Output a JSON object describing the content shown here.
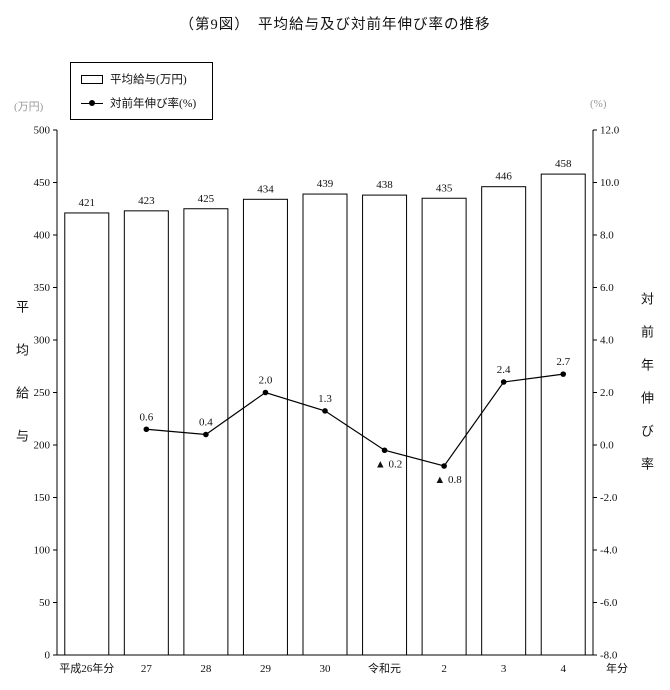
{
  "title": "（第9図）　平均給与及び対前年伸び率の推移",
  "legend": {
    "bar_label": "平均給与(万円)",
    "line_label": "対前年伸び率(%)"
  },
  "axes": {
    "left_unit": "(万円)",
    "right_unit": "(%)",
    "left_axis_title": "平均給与",
    "right_axis_title": "対前年伸び率",
    "x_suffix": "年分"
  },
  "chart_data": {
    "type": "bar+line",
    "title": "（第9図）　平均給与及び対前年伸び率の推移",
    "categories": [
      "平成26年分",
      "27",
      "28",
      "29",
      "30",
      "令和元",
      "2",
      "3",
      "4"
    ],
    "series": [
      {
        "name": "平均給与(万円)",
        "type": "bar",
        "axis": "left",
        "values": [
          421,
          423,
          425,
          434,
          439,
          438,
          435,
          446,
          458
        ]
      },
      {
        "name": "対前年伸び率(%)",
        "type": "line",
        "axis": "right",
        "values": [
          null,
          0.6,
          0.4,
          2.0,
          1.3,
          -0.2,
          -0.8,
          2.4,
          2.7
        ]
      }
    ],
    "left_axis": {
      "min": 0,
      "max": 500,
      "step": 50,
      "unit": "万円"
    },
    "right_axis": {
      "min": -8.0,
      "max": 12.0,
      "step": 2.0,
      "unit": "%"
    },
    "negative_marker": "▲",
    "grid": false,
    "legend_position": "top-left",
    "bar_fill": "#ffffff",
    "stroke_color": "#000000"
  }
}
